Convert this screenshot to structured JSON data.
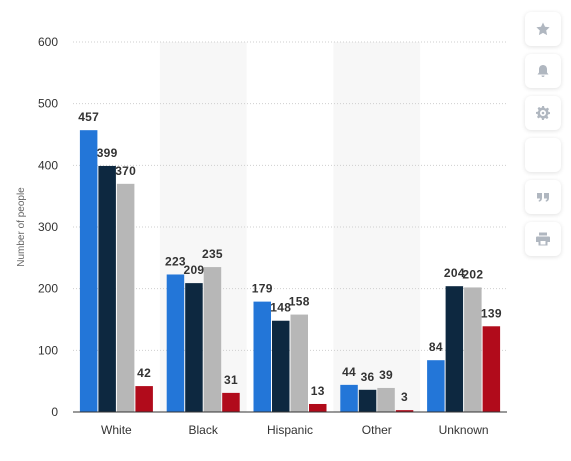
{
  "chart_data": {
    "type": "bar",
    "categories": [
      "White",
      "Black",
      "Hispanic",
      "Other",
      "Unknown"
    ],
    "series": [
      {
        "values": [
          457,
          223,
          179,
          44,
          84
        ],
        "color": "#2376d8"
      },
      {
        "values": [
          399,
          209,
          148,
          36,
          204
        ],
        "color": "#0d2840"
      },
      {
        "values": [
          370,
          235,
          158,
          39,
          202
        ],
        "color": "#b7b7b7"
      },
      {
        "values": [
          42,
          31,
          13,
          3,
          139
        ],
        "color": "#b10b1b"
      }
    ],
    "ylabel": "Number of people",
    "xlabel": "",
    "ylim": [
      0,
      600
    ],
    "yticks": [
      0,
      100,
      200,
      300,
      400,
      500,
      600
    ],
    "grid": true,
    "data_labels": true
  },
  "toolbar": {
    "icons": [
      "star-icon",
      "bell-icon",
      "gear-icon",
      "share-icon",
      "quote-icon",
      "print-icon"
    ]
  }
}
